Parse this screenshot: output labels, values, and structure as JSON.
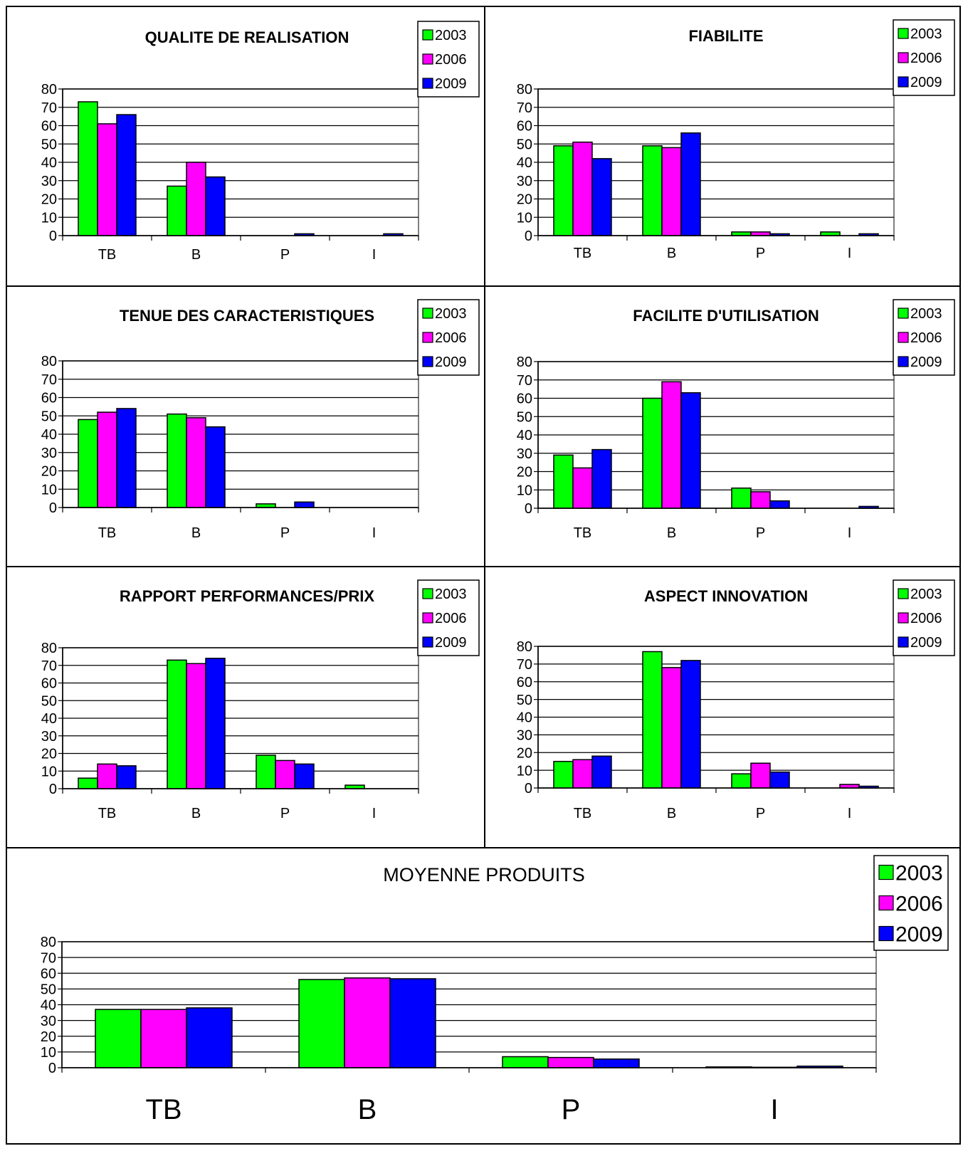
{
  "colors": {
    "2003": "#00ff00",
    "2006": "#ff00ff",
    "2009": "#0000ff",
    "grid": "#000000",
    "frame": "#808080"
  },
  "chart_data": [
    {
      "type": "bar",
      "title": "QUALITE DE REALISATION",
      "categories": [
        "TB",
        "B",
        "P",
        "I"
      ],
      "series": [
        {
          "name": "2003",
          "values": [
            73,
            27,
            0,
            0
          ]
        },
        {
          "name": "2006",
          "values": [
            61,
            40,
            0,
            0
          ]
        },
        {
          "name": "2009",
          "values": [
            66,
            32,
            1,
            1
          ]
        }
      ],
      "ylim": [
        0,
        80
      ],
      "yticks": [
        "0",
        "10",
        "20",
        "30",
        "40",
        "50",
        "60",
        "70",
        "80"
      ],
      "legend": "top-right",
      "grid": true
    },
    {
      "type": "bar",
      "title": "FIABILITE",
      "categories": [
        "TB",
        "B",
        "P",
        "I"
      ],
      "series": [
        {
          "name": "2003",
          "values": [
            49,
            49,
            2,
            2
          ]
        },
        {
          "name": "2006",
          "values": [
            51,
            48,
            2,
            0
          ]
        },
        {
          "name": "2009",
          "values": [
            42,
            56,
            1,
            1
          ]
        }
      ],
      "ylim": [
        0,
        80
      ],
      "yticks": [
        "0",
        "10",
        "20",
        "30",
        "40",
        "50",
        "60",
        "70",
        "80"
      ],
      "legend": "top-right",
      "grid": true
    },
    {
      "type": "bar",
      "title": "TENUE DES CARACTERISTIQUES",
      "categories": [
        "TB",
        "B",
        "P",
        "I"
      ],
      "series": [
        {
          "name": "2003",
          "values": [
            48,
            51,
            2,
            0
          ]
        },
        {
          "name": "2006",
          "values": [
            52,
            49,
            0,
            0
          ]
        },
        {
          "name": "2009",
          "values": [
            54,
            44,
            3,
            0
          ]
        }
      ],
      "ylim": [
        0,
        80
      ],
      "yticks": [
        "0",
        "10",
        "20",
        "30",
        "40",
        "50",
        "60",
        "70",
        "80"
      ],
      "legend": "top-right",
      "grid": true
    },
    {
      "type": "bar",
      "title": "FACILITE D'UTILISATION",
      "categories": [
        "TB",
        "B",
        "P",
        "I"
      ],
      "series": [
        {
          "name": "2003",
          "values": [
            29,
            60,
            11,
            0
          ]
        },
        {
          "name": "2006",
          "values": [
            22,
            69,
            9,
            0
          ]
        },
        {
          "name": "2009",
          "values": [
            32,
            63,
            4,
            1
          ]
        }
      ],
      "ylim": [
        0,
        80
      ],
      "yticks": [
        "0",
        "10",
        "20",
        "30",
        "40",
        "50",
        "60",
        "70",
        "80"
      ],
      "legend": "top-right",
      "grid": true
    },
    {
      "type": "bar",
      "title": "RAPPORT PERFORMANCES/PRIX",
      "categories": [
        "TB",
        "B",
        "P",
        "I"
      ],
      "series": [
        {
          "name": "2003",
          "values": [
            6,
            73,
            19,
            2
          ]
        },
        {
          "name": "2006",
          "values": [
            14,
            71,
            16,
            0
          ]
        },
        {
          "name": "2009",
          "values": [
            13,
            74,
            14,
            0
          ]
        }
      ],
      "ylim": [
        0,
        80
      ],
      "yticks": [
        "0",
        "10",
        "20",
        "30",
        "40",
        "50",
        "60",
        "70",
        "80"
      ],
      "legend": "top-right",
      "grid": true
    },
    {
      "type": "bar",
      "title": "ASPECT INNOVATION",
      "categories": [
        "TB",
        "B",
        "P",
        "I"
      ],
      "series": [
        {
          "name": "2003",
          "values": [
            15,
            77,
            8,
            0
          ]
        },
        {
          "name": "2006",
          "values": [
            16,
            68,
            14,
            2
          ]
        },
        {
          "name": "2009",
          "values": [
            18,
            72,
            9,
            1
          ]
        }
      ],
      "ylim": [
        0,
        80
      ],
      "yticks": [
        "0",
        "10",
        "20",
        "30",
        "40",
        "50",
        "60",
        "70",
        "80"
      ],
      "legend": "top-right",
      "grid": true
    },
    {
      "type": "bar",
      "title": "MOYENNE PRODUITS",
      "categories": [
        "TB",
        "B",
        "P",
        "I"
      ],
      "series": [
        {
          "name": "2003",
          "values": [
            37,
            56,
            7,
            0.5
          ]
        },
        {
          "name": "2006",
          "values": [
            37,
            57,
            6.5,
            0.3
          ]
        },
        {
          "name": "2009",
          "values": [
            38,
            56.5,
            5.5,
            1
          ]
        }
      ],
      "ylim": [
        0,
        80
      ],
      "yticks": [
        "0",
        "10",
        "20",
        "30",
        "40",
        "50",
        "60",
        "70",
        "80"
      ],
      "legend": "top-right",
      "grid": true
    }
  ]
}
